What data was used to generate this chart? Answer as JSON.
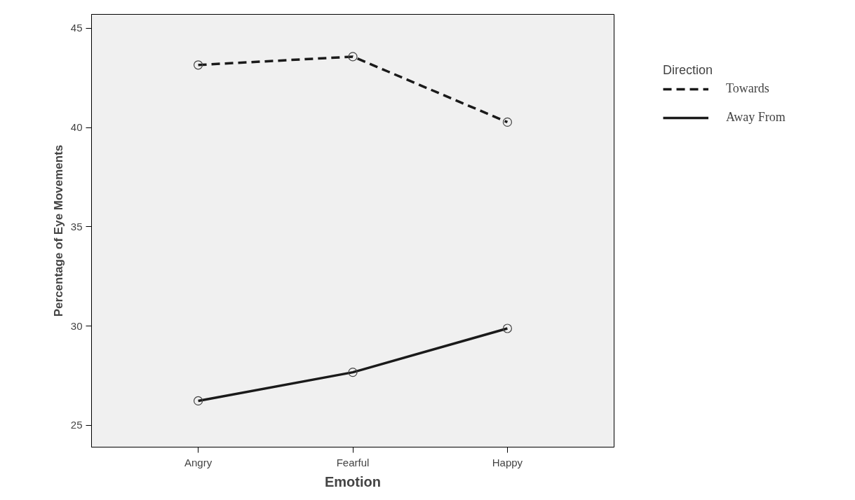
{
  "chart_data": {
    "type": "line",
    "xlabel": "Emotion",
    "ylabel": "Percentage of Eye Movements",
    "legend_title": "Direction",
    "legend": "right",
    "grid": false,
    "marker": "circle",
    "categories": [
      "Angry",
      "Fearful",
      "Happy"
    ],
    "ylim": [
      23.9,
      45.7
    ],
    "yticks": [
      25,
      30,
      35,
      40,
      45
    ],
    "series": [
      {
        "name": "Towards",
        "color": "#1a1a1a",
        "line_style": "dashed",
        "values": [
          43.15,
          43.57,
          40.27
        ]
      },
      {
        "name": "Away From",
        "color": "#1a1a1a",
        "line_style": "solid",
        "values": [
          26.23,
          27.67,
          29.88
        ]
      }
    ]
  }
}
